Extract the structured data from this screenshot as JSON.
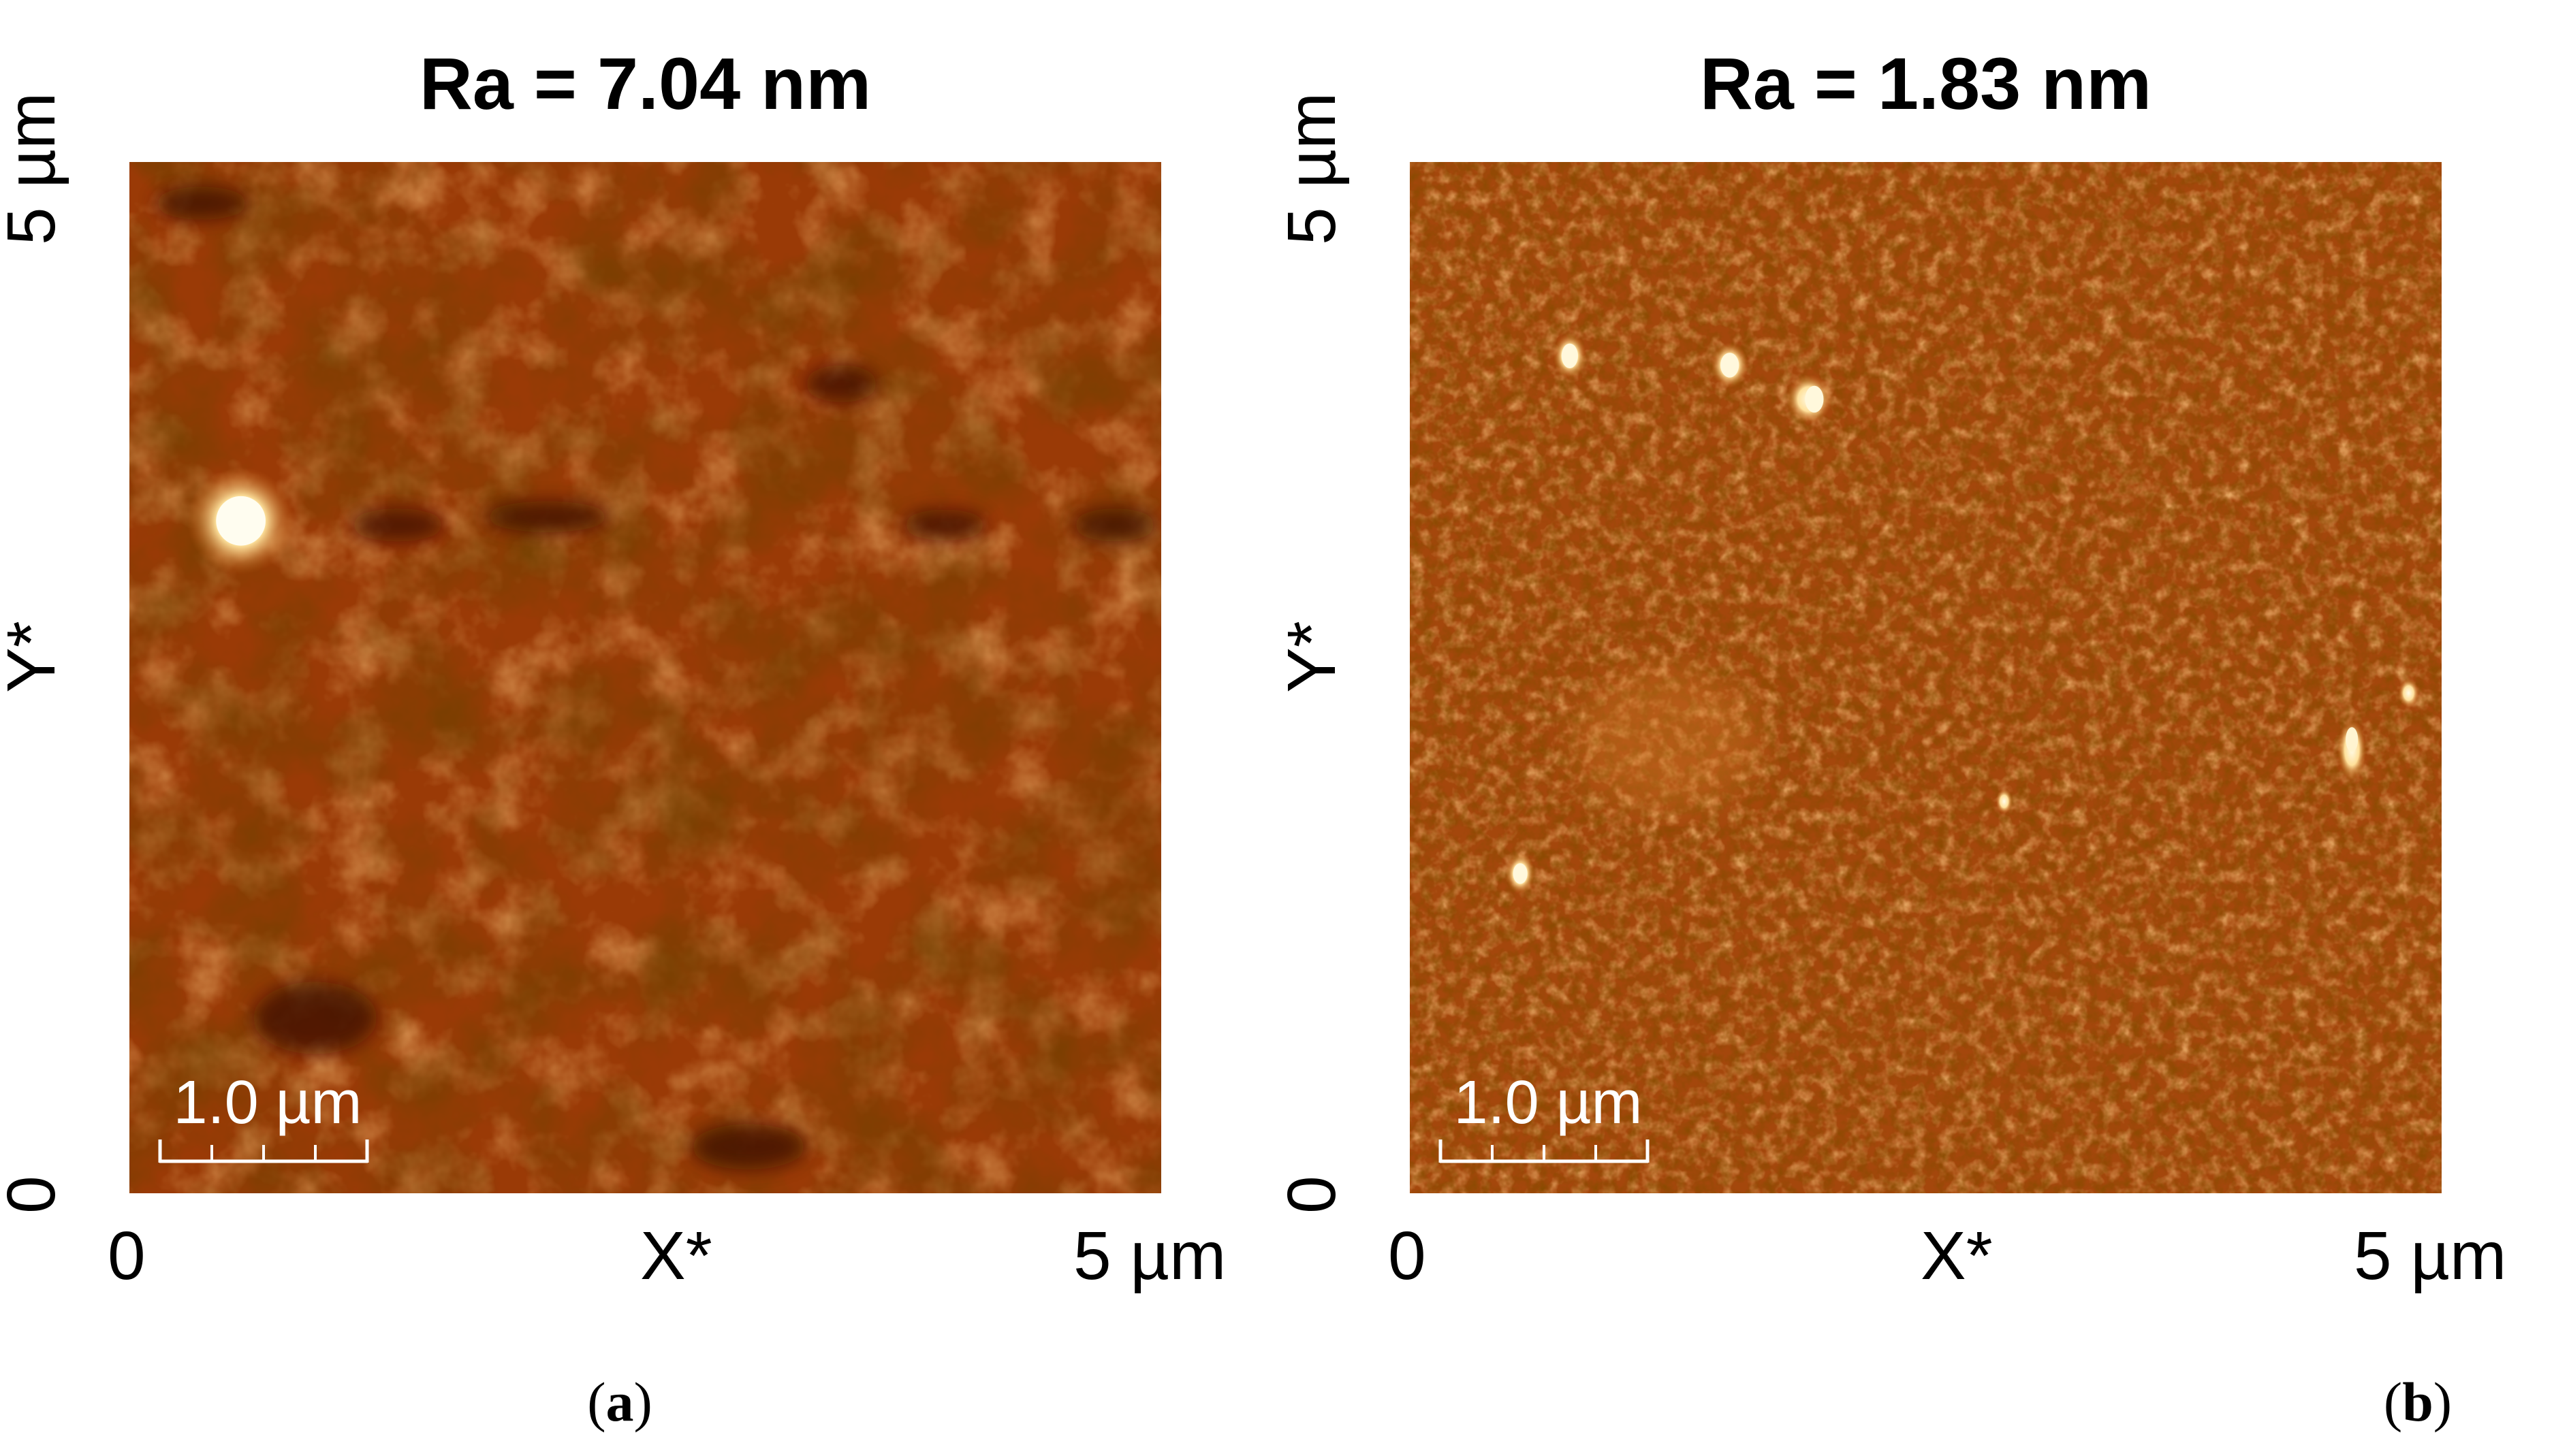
{
  "panels": [
    {
      "title": "Ra = 7.04 nm",
      "y_axis": {
        "top": "5 µm",
        "label": "Y*",
        "bottom": "0"
      },
      "x_axis": {
        "left": "0",
        "label": "X*",
        "right": "5 µm"
      },
      "scale_bar": "1.0 µm",
      "caption": {
        "open": "(",
        "letter": "a",
        "close": ")"
      },
      "colormap": {
        "base": "#9a3a06",
        "dark": "#4a1602",
        "bright": "#fff2c2"
      }
    },
    {
      "title": "Ra = 1.83 nm",
      "y_axis": {
        "top": "5 µm",
        "label": "Y*",
        "bottom": "0"
      },
      "x_axis": {
        "left": "0",
        "label": "X*",
        "right": "5 µm"
      },
      "scale_bar": "1.0 µm",
      "caption": {
        "open": "(",
        "letter": "b",
        "close": ")"
      },
      "colormap": {
        "base": "#a4470c",
        "dark": "#5a1e03",
        "bright": "#fff0c0"
      }
    }
  ]
}
